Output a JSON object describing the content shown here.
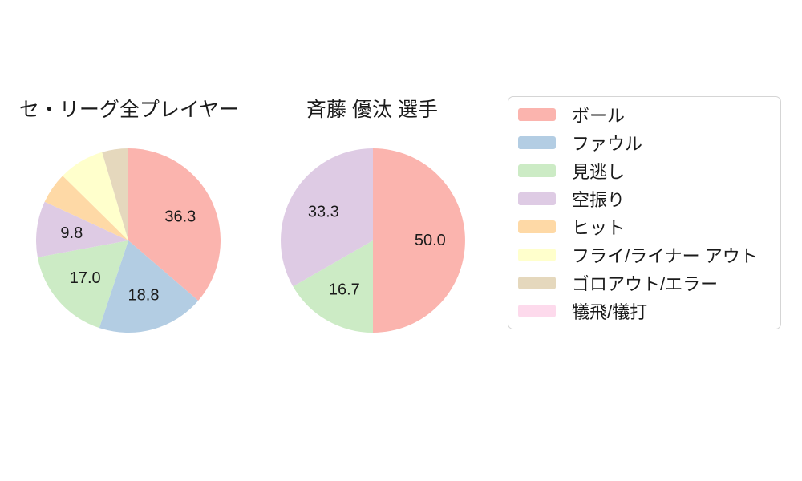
{
  "page": {
    "background": "#ffffff",
    "text_color": "#1a1a1a"
  },
  "chart_data": [
    {
      "type": "pie",
      "title": "セ・リーグ全プレイヤー",
      "labels": [
        "ボール",
        "ファウル",
        "見逃し",
        "空振り",
        "ヒット",
        "フライ/ライナー アウト",
        "ゴロアウト/エラー"
      ],
      "values": [
        36.3,
        18.8,
        17.0,
        9.8,
        5.5,
        8.0,
        4.6
      ],
      "value_labels": [
        "36.3",
        "18.8",
        "17.0",
        "9.8",
        null,
        null,
        null
      ],
      "colors": [
        "#fbb4ae",
        "#b3cde3",
        "#ccebc5",
        "#decbe4",
        "#fed9a6",
        "#ffffcc",
        "#e5d8bd"
      ],
      "start_angle_deg": 90,
      "direction": "clockwise",
      "label_radius_fraction": 0.62
    },
    {
      "type": "pie",
      "title": "斉藤 優汰 選手",
      "labels": [
        "ボール",
        "見逃し",
        "空振り"
      ],
      "values": [
        50.0,
        16.7,
        33.3
      ],
      "value_labels": [
        "50.0",
        "16.7",
        "33.3"
      ],
      "colors": [
        "#fbb4ae",
        "#ccebc5",
        "#decbe4"
      ],
      "start_angle_deg": 90,
      "direction": "clockwise",
      "label_radius_fraction": 0.62
    }
  ],
  "legend": {
    "position": "right",
    "items": [
      {
        "label": "ボール",
        "color": "#fbb4ae"
      },
      {
        "label": "ファウル",
        "color": "#b3cde3"
      },
      {
        "label": "見逃し",
        "color": "#ccebc5"
      },
      {
        "label": "空振り",
        "color": "#decbe4"
      },
      {
        "label": "ヒット",
        "color": "#fed9a6"
      },
      {
        "label": "フライ/ライナー アウト",
        "color": "#ffffcc"
      },
      {
        "label": "ゴロアウト/エラー",
        "color": "#e5d8bd"
      },
      {
        "label": "犠飛/犠打",
        "color": "#fddaec"
      }
    ]
  }
}
